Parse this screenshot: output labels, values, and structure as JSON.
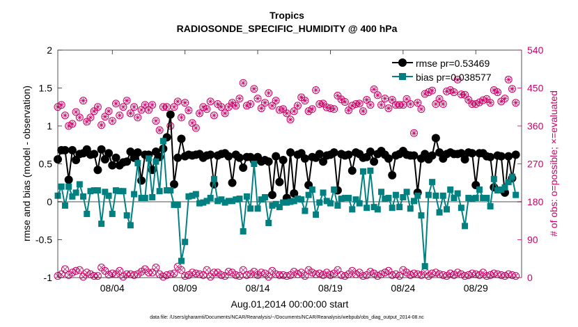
{
  "chart_data": {
    "type": "line",
    "title": "Tropics",
    "subtitle": "RADIOSONDE_SPECIFIC_HUMIDITY @ 400 hPa",
    "xlabel": "Aug.01,2014 00:00:00 start",
    "ylabel_left": "rmse and bias (model - observation)",
    "ylabel_right": "# of obs: o=possible; ×=evaluated",
    "footer": "data file: /Users/gharamti/Documents/NCAR/Reanalysis/~/Documents/NCAR/Reanalysis/webpub/obs_diag_output_2014-08.nc",
    "x_range": [
      0.0,
      31.9
    ],
    "x_ticks": [
      {
        "value": 3.75,
        "label": "08/04"
      },
      {
        "value": 8.75,
        "label": "08/09"
      },
      {
        "value": 13.75,
        "label": "08/14"
      },
      {
        "value": 18.75,
        "label": "08/19"
      },
      {
        "value": 23.75,
        "label": "08/24"
      },
      {
        "value": 28.75,
        "label": "08/29"
      }
    ],
    "ylim_left": [
      -1,
      2
    ],
    "yticks_left": [
      "-1",
      "-0.5",
      "0",
      "0.5",
      "1",
      "1.5",
      "2"
    ],
    "ylim_right": [
      0,
      540
    ],
    "yticks_right": [
      "0",
      "90",
      "180",
      "270",
      "360",
      "450",
      "540"
    ],
    "colors": {
      "rmse": "#000000",
      "bias": "#008080",
      "obs": "#cc0066",
      "zero_line": "#a6a6a6"
    },
    "legend": {
      "position": "top-right",
      "rmse_label": "rmse pr=0.53469",
      "bias_label": "bias pr=0.038577"
    },
    "series": [
      {
        "name": "rmse",
        "values": [
          0.56,
          0.68,
          0.68,
          0.29,
          0.68,
          0.55,
          0.63,
          0.64,
          0.69,
          0.62,
          0.63,
          0.42,
          0.69,
          0.56,
          0.64,
          0.48,
          0.58,
          0.48,
          0.52,
          0.53,
          0.66,
          0.58,
          0.65,
          0.28,
          0.62,
          0.62,
          0.42,
          0.66,
          0.59,
          0.7,
          0.85,
          1.15,
          0.23,
          0.58,
          0.83,
          0.6,
          0.62,
          0.61,
          0.62,
          0.63,
          0.58,
          0.61,
          0.62,
          0.23,
          0.61,
          0.63,
          0.64,
          0.6,
          0.25,
          0.62,
          0.58,
          0.45,
          0.59,
          0.59,
          0.54,
          0.59,
          0.53,
          0.55,
          0.53,
          0.09,
          0.6,
          0.26,
          0.55,
          0.05,
          0.65,
          0.11,
          0.62,
          0.64,
          0.57,
          0.22,
          0.59,
          0.58,
          0.63,
          0.53,
          0.61,
          0.62,
          0.65,
          0.15,
          0.63,
          0.61,
          0.62,
          0.41,
          0.65,
          0.63,
          0.58,
          0.59,
          0.66,
          0.53,
          0.63,
          0.67,
          0.62,
          0.57,
          0.35,
          0.61,
          0.63,
          0.67,
          0.62,
          0.61,
          0.61,
          0.12,
          0.57,
          0.63,
          0.56,
          0.61,
          0.84,
          0.65,
          0.57,
          0.63,
          0.65,
          0.63,
          0.63,
          0.64,
          0.56,
          0.65,
          0.64,
          0.22,
          0.64,
          0.64,
          0.6,
          0.59,
          0.19,
          0.61,
          0.6,
          0.12,
          0.6,
          0.31,
          0.62
        ]
      },
      {
        "name": "bias",
        "values": [
          0.08,
          0.2,
          -0.05,
          0.2,
          0.07,
          0.12,
          0.23,
          0.07,
          -0.16,
          0.14,
          0.15,
          0.15,
          -0.29,
          0.13,
          0.08,
          -0.16,
          0.15,
          0.14,
          0.14,
          -0.18,
          -0.31,
          0.1,
          0.51,
          0.05,
          0.05,
          0.57,
          0.06,
          0.53,
          0.14,
          0.8,
          0.15,
          0.15,
          -0.04,
          -0.04,
          -0.78,
          -0.53,
          0.07,
          0.08,
          0.1,
          -0.02,
          -0.01,
          0.01,
          0.05,
          0.3,
          0.01,
          0.03,
          -0.01,
          0.01,
          0.01,
          0.03,
          0.04,
          -0.39,
          0.07,
          -0.09,
          0.5,
          -0.09,
          0.03,
          0.06,
          -0.28,
          -0.05,
          -0.03,
          -0.07,
          -0.01,
          -0.01,
          0.0,
          0.01,
          0.04,
          0.03,
          -0.12,
          0.09,
          0.16,
          -0.17,
          -0.01,
          0.12,
          0.01,
          -0.02,
          0.16,
          -0.05,
          0.04,
          0.05,
          0.05,
          -0.1,
          0.03,
          -0.02,
          0.4,
          -0.08,
          0.41,
          -0.07,
          -0.1,
          0.13,
          0.04,
          0.05,
          -0.08,
          0.09,
          -0.07,
          0.06,
          0.13,
          -0.09,
          0.01,
          0.08,
          -0.18,
          -0.85,
          0.09,
          0.26,
          0.08,
          -0.14,
          0.08,
          -0.1,
          0.16,
          0.05,
          0.11,
          -0.08,
          -0.32,
          0.05,
          0.04,
          0.05,
          0.16,
          0.05,
          0.05,
          -0.06,
          0.3,
          0.15,
          0.16,
          0.19,
          0.26,
          0.33,
          0.09
        ]
      },
      {
        "name": "obs_possible",
        "values": [
          405,
          410,
          385,
          360,
          365,
          393,
          380,
          420,
          370,
          380,
          395,
          405,
          362,
          382,
          395,
          372,
          413,
          385,
          405,
          420,
          390,
          405,
          380,
          398,
          410,
          398,
          410,
          372,
          350,
          405,
          405,
          360,
          405,
          418,
          380,
          415,
          397,
          367,
          355,
          390,
          405,
          400,
          418,
          385,
          412,
          405,
          390,
          405,
          415,
          408,
          425,
          462,
          408,
          412,
          448,
          425,
          402,
          415,
          438,
          408,
          420,
          398,
          400,
          390,
          375,
          395,
          408,
          428,
          420,
          395,
          400,
          445,
          412,
          413,
          404,
          402,
          400,
          432,
          423,
          417,
          397,
          408,
          412,
          413,
          395,
          422,
          410,
          447,
          433,
          410,
          425,
          402,
          422,
          410,
          410,
          410,
          424,
          412,
          343,
          415,
          400,
          436,
          440,
          444,
          412,
          424,
          412,
          442,
          445,
          440,
          470,
          435,
          434,
          422,
          412,
          412,
          416,
          421,
          424,
          415,
          445,
          440,
          418,
          425,
          470,
          448,
          415
        ]
      },
      {
        "name": "obs_evaluated",
        "values": [
          4,
          8,
          20,
          6,
          12,
          16,
          18,
          2,
          12,
          8,
          4,
          4,
          24,
          16,
          7,
          10,
          8,
          16,
          2,
          8,
          8,
          6,
          8,
          14,
          20,
          12,
          12,
          24,
          8,
          2,
          6,
          8,
          10,
          26,
          18,
          4,
          6,
          12,
          10,
          8,
          6,
          18,
          2,
          12,
          12,
          6,
          4,
          14,
          12,
          6,
          4,
          18,
          6,
          8,
          14,
          6,
          12,
          10,
          2,
          16,
          8,
          6,
          6,
          4,
          6,
          14,
          8,
          12,
          4,
          18,
          12,
          8,
          10,
          6,
          12,
          6,
          10,
          18,
          6,
          4,
          8,
          16,
          8,
          12,
          4,
          6,
          14,
          10,
          4,
          8,
          12,
          16,
          6,
          8,
          4,
          18,
          12,
          6,
          10,
          8,
          6,
          14,
          4,
          10,
          12,
          8,
          6,
          4,
          10,
          6,
          12,
          8,
          4,
          6,
          10,
          8,
          6,
          12,
          4,
          6,
          10,
          8,
          6,
          4,
          8,
          6,
          4
        ]
      }
    ]
  }
}
